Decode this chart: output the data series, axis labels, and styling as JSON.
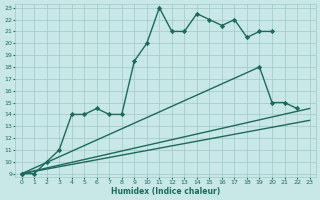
{
  "bg_color": "#c8e8e8",
  "grid_color": "#a0c8c8",
  "line_color": "#1a6b5a",
  "xlabel": "Humidex (Indice chaleur)",
  "xlim": [
    -0.5,
    23.5
  ],
  "ylim": [
    8.7,
    23.3
  ],
  "xticks": [
    0,
    1,
    2,
    3,
    4,
    5,
    6,
    7,
    8,
    9,
    10,
    11,
    12,
    13,
    14,
    15,
    16,
    17,
    18,
    19,
    20,
    21,
    22,
    23
  ],
  "yticks": [
    9,
    10,
    11,
    12,
    13,
    14,
    15,
    16,
    17,
    18,
    19,
    20,
    21,
    22,
    23
  ],
  "s1x": [
    0,
    1,
    2,
    3,
    4,
    5,
    6,
    7,
    8,
    9,
    10,
    11,
    12,
    13,
    14,
    15,
    16,
    17,
    18,
    19,
    20
  ],
  "s1y": [
    9,
    9,
    10,
    11,
    14,
    14,
    14.5,
    14,
    14,
    18.5,
    20,
    23,
    21,
    21,
    22.5,
    22,
    21.5,
    22,
    20.5,
    21,
    21
  ],
  "s2x": [
    0,
    19,
    20,
    21,
    22
  ],
  "s2y": [
    9,
    18,
    15,
    15,
    14.5
  ],
  "s3x": [
    0,
    23
  ],
  "s3y": [
    9,
    14.5
  ],
  "s4x": [
    0,
    23
  ],
  "s4y": [
    9,
    13.5
  ],
  "lw": 1.0,
  "ms": 2.2
}
